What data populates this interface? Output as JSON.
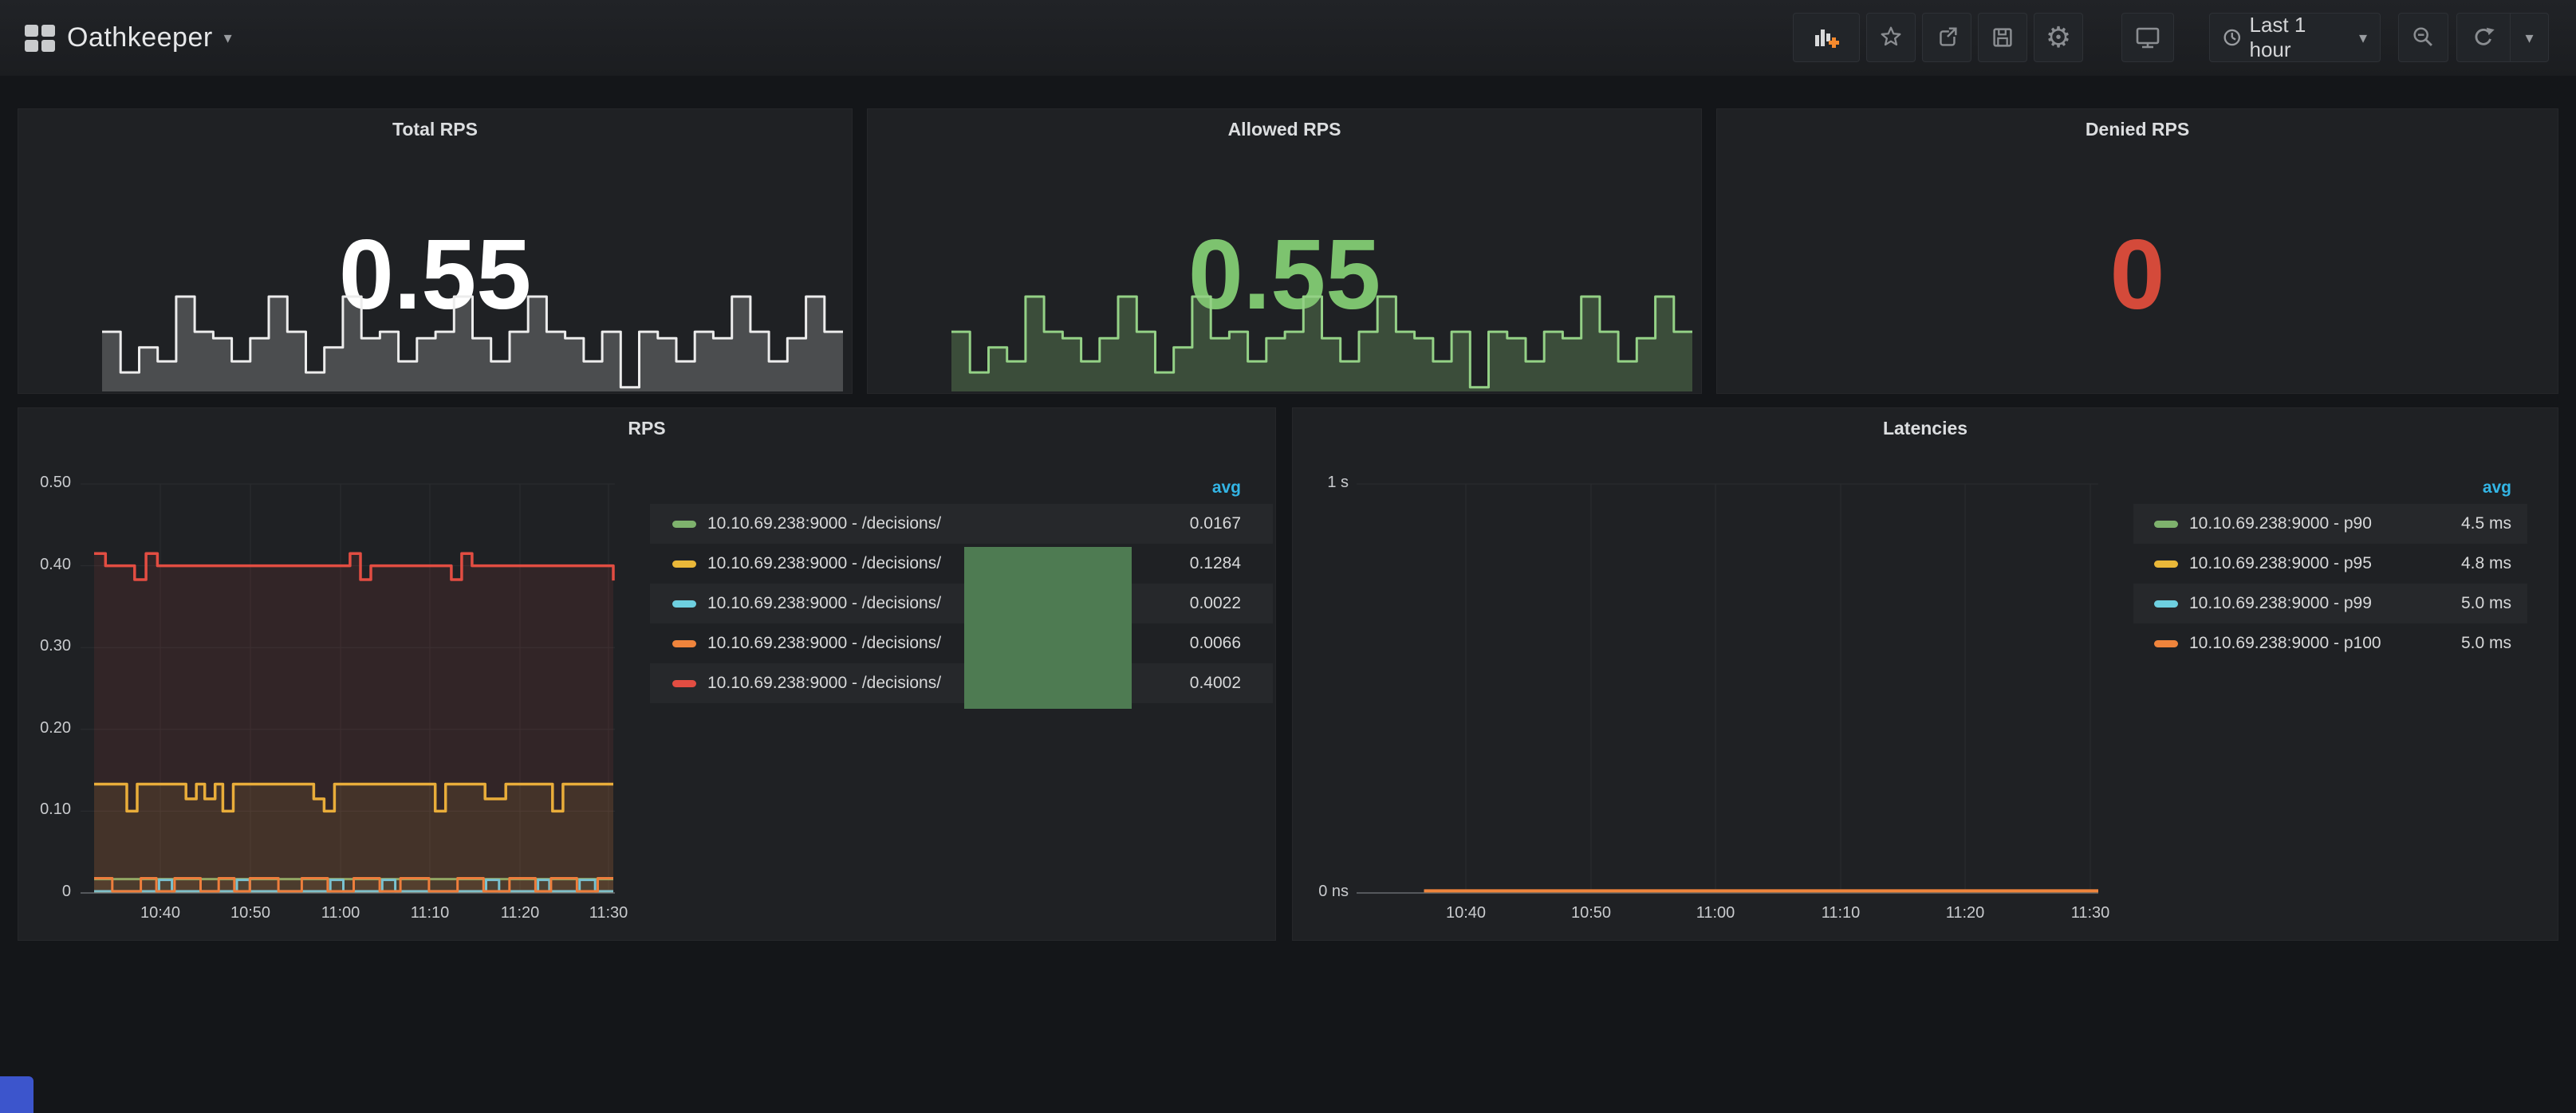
{
  "navbar": {
    "title": "Oathkeeper",
    "toolbar": {
      "time_range": "Last 1 hour",
      "buttons": [
        "add-panel",
        "star",
        "share",
        "save",
        "settings",
        "cycle-view-mode",
        "time-range",
        "zoom-out",
        "refresh",
        "refresh-interval"
      ]
    }
  },
  "colors": {
    "accent_blue": "#33b5e5",
    "palette_green": "#7eb26d",
    "palette_yellow": "#eab839",
    "palette_blue": "#6ed0e0",
    "palette_orange": "#ef843c",
    "palette_red": "#e24d42"
  },
  "panels": {
    "total_rps": {
      "title": "Total RPS",
      "value": "0.55",
      "value_color": "#ffffff"
    },
    "allowed_rps": {
      "title": "Allowed RPS",
      "value": "0.55",
      "value_color": "#7dc36f"
    },
    "denied_rps": {
      "title": "Denied RPS",
      "value": "0",
      "value_color": "#d44a3a"
    },
    "rps": {
      "title": "RPS",
      "y_ticks": [
        "0.50",
        "0.40",
        "0.30",
        "0.20",
        "0.10",
        "0"
      ],
      "x_ticks": [
        "10:40",
        "10:50",
        "11:00",
        "11:10",
        "11:20",
        "11:30"
      ],
      "legend": {
        "header": "avg",
        "header_color": "#33b5e5",
        "rows": [
          {
            "label": "10.10.69.238:9000 - /decisions/",
            "value": "0.0167",
            "color": "#7eb26d"
          },
          {
            "label": "10.10.69.238:9000 - /decisions/",
            "value": "0.1284",
            "color": "#eab839"
          },
          {
            "label": "10.10.69.238:9000 - /decisions/",
            "value": "0.0022",
            "color": "#6ed0e0"
          },
          {
            "label": "10.10.69.238:9000 - /decisions/",
            "value": "0.0066",
            "color": "#ef843c"
          },
          {
            "label": "10.10.69.238:9000 - /decisions/",
            "value": "0.4002",
            "color": "#e24d42"
          }
        ]
      }
    },
    "latencies": {
      "title": "Latencies",
      "y_ticks": [
        "1 s",
        "0 ns"
      ],
      "x_ticks": [
        "10:40",
        "10:50",
        "11:00",
        "11:10",
        "11:20",
        "11:30"
      ],
      "legend": {
        "header": "avg",
        "header_color": "#33b5e5",
        "rows": [
          {
            "label": "10.10.69.238:9000 - p90",
            "value": "4.5 ms",
            "color": "#7eb26d"
          },
          {
            "label": "10.10.69.238:9000 - p95",
            "value": "4.8 ms",
            "color": "#eab839"
          },
          {
            "label": "10.10.69.238:9000 - p99",
            "value": "5.0 ms",
            "color": "#6ed0e0"
          },
          {
            "label": "10.10.69.238:9000 - p100",
            "value": "5.0 ms",
            "color": "#ef843c"
          }
        ]
      }
    }
  },
  "chart_data": [
    {
      "id": "total_rps_sparkline",
      "type": "sparkline",
      "title": "Total RPS",
      "current": 0.55,
      "line_color": "#ececec",
      "fill_color": "rgba(255,255,255,0.20)",
      "values": [
        0.62,
        0.18,
        0.45,
        0.3,
        1.0,
        0.62,
        0.55,
        0.3,
        0.55,
        1.0,
        0.62,
        0.18,
        0.45,
        1.0,
        0.55,
        0.62,
        0.3,
        0.55,
        0.62,
        1.0,
        0.55,
        0.3,
        0.62,
        1.0,
        0.62,
        0.55,
        0.3,
        0.62,
        0.02,
        0.62,
        0.55,
        0.3,
        0.62,
        0.55,
        1.0,
        0.62,
        0.3,
        0.55,
        1.0,
        0.62
      ]
    },
    {
      "id": "allowed_rps_sparkline",
      "type": "sparkline",
      "title": "Allowed RPS",
      "current": 0.55,
      "line_color": "#94d186",
      "fill_color": "rgba(126,178,109,0.30)",
      "values": [
        0.62,
        0.18,
        0.45,
        0.3,
        1.0,
        0.62,
        0.55,
        0.3,
        0.55,
        1.0,
        0.62,
        0.18,
        0.45,
        1.0,
        0.55,
        0.62,
        0.3,
        0.55,
        0.62,
        1.0,
        0.55,
        0.3,
        0.62,
        1.0,
        0.62,
        0.55,
        0.3,
        0.62,
        0.02,
        0.62,
        0.55,
        0.3,
        0.62,
        0.55,
        1.0,
        0.62,
        0.3,
        0.55,
        1.0,
        0.62
      ]
    },
    {
      "id": "rps_timeseries",
      "type": "line",
      "title": "RPS",
      "ylim": [
        0,
        0.5
      ],
      "y_ticks": [
        "0.50",
        "0.40",
        "0.30",
        "0.20",
        "0.10",
        "0"
      ],
      "x_ticks": [
        "10:40",
        "10:50",
        "11:00",
        "11:10",
        "11:20",
        "11:30"
      ],
      "grid": true,
      "legend_position": "right-table",
      "series": [
        {
          "name": "10.10.69.238:9000 - /decisions/",
          "color": "#7eb26d",
          "avg": 0.0167,
          "width": 3,
          "fill_opacity": 0.08,
          "points": [
            [
              0,
              0.017
            ],
            [
              1,
              0.017
            ]
          ]
        },
        {
          "name": "10.10.69.238:9000 - /decisions/",
          "color": "#eab839",
          "avg": 0.1284,
          "width": 3.5,
          "fill_opacity": 0.1,
          "points": [
            [
              0,
              0.133
            ],
            [
              0.058,
              0.133
            ],
            [
              0.063,
              0.1
            ],
            [
              0.078,
              0.1
            ],
            [
              0.083,
              0.133
            ],
            [
              0.172,
              0.133
            ],
            [
              0.177,
              0.115
            ],
            [
              0.192,
              0.115
            ],
            [
              0.197,
              0.133
            ],
            [
              0.208,
              0.133
            ],
            [
              0.213,
              0.115
            ],
            [
              0.228,
              0.115
            ],
            [
              0.233,
              0.133
            ],
            [
              0.243,
              0.133
            ],
            [
              0.248,
              0.1
            ],
            [
              0.263,
              0.1
            ],
            [
              0.268,
              0.133
            ],
            [
              0.418,
              0.133
            ],
            [
              0.423,
              0.115
            ],
            [
              0.438,
              0.115
            ],
            [
              0.443,
              0.1
            ],
            [
              0.458,
              0.1
            ],
            [
              0.463,
              0.133
            ],
            [
              0.652,
              0.133
            ],
            [
              0.657,
              0.1
            ],
            [
              0.672,
              0.1
            ],
            [
              0.677,
              0.133
            ],
            [
              0.748,
              0.133
            ],
            [
              0.753,
              0.115
            ],
            [
              0.788,
              0.115
            ],
            [
              0.793,
              0.133
            ],
            [
              0.878,
              0.133
            ],
            [
              0.883,
              0.1
            ],
            [
              0.898,
              0.1
            ],
            [
              0.903,
              0.133
            ],
            [
              1,
              0.133
            ]
          ]
        },
        {
          "name": "10.10.69.238:9000 - /decisions/",
          "color": "#6ed0e0",
          "avg": 0.0022,
          "width": 3,
          "fill_opacity": 0.05,
          "points": [
            [
              0,
              0.002
            ],
            [
              0.12,
              0.002
            ],
            [
              0.125,
              0.016
            ],
            [
              0.145,
              0.016
            ],
            [
              0.15,
              0.002
            ],
            [
              0.27,
              0.002
            ],
            [
              0.275,
              0.016
            ],
            [
              0.295,
              0.016
            ],
            [
              0.3,
              0.002
            ],
            [
              0.45,
              0.002
            ],
            [
              0.455,
              0.016
            ],
            [
              0.475,
              0.016
            ],
            [
              0.48,
              0.002
            ],
            [
              0.55,
              0.002
            ],
            [
              0.555,
              0.016
            ],
            [
              0.575,
              0.016
            ],
            [
              0.58,
              0.002
            ],
            [
              0.75,
              0.002
            ],
            [
              0.755,
              0.016
            ],
            [
              0.775,
              0.016
            ],
            [
              0.78,
              0.002
            ],
            [
              0.85,
              0.002
            ],
            [
              0.855,
              0.016
            ],
            [
              0.872,
              0.016
            ],
            [
              0.877,
              0.002
            ],
            [
              0.93,
              0.002
            ],
            [
              0.935,
              0.016
            ],
            [
              0.96,
              0.016
            ],
            [
              0.965,
              0.002
            ],
            [
              1,
              0.002
            ]
          ]
        },
        {
          "name": "10.10.69.238:9000 - /decisions/",
          "color": "#ef843c",
          "avg": 0.0066,
          "width": 3,
          "fill_opacity": 0.06,
          "points": [
            [
              0,
              0.018
            ],
            [
              0.03,
              0.018
            ],
            [
              0.035,
              0.002
            ],
            [
              0.085,
              0.002
            ],
            [
              0.09,
              0.018
            ],
            [
              0.115,
              0.018
            ],
            [
              0.12,
              0.002
            ],
            [
              0.15,
              0.002
            ],
            [
              0.155,
              0.018
            ],
            [
              0.2,
              0.018
            ],
            [
              0.205,
              0.002
            ],
            [
              0.235,
              0.002
            ],
            [
              0.24,
              0.018
            ],
            [
              0.265,
              0.018
            ],
            [
              0.27,
              0.002
            ],
            [
              0.295,
              0.002
            ],
            [
              0.3,
              0.018
            ],
            [
              0.35,
              0.018
            ],
            [
              0.355,
              0.002
            ],
            [
              0.395,
              0.002
            ],
            [
              0.4,
              0.018
            ],
            [
              0.445,
              0.018
            ],
            [
              0.45,
              0.002
            ],
            [
              0.495,
              0.002
            ],
            [
              0.5,
              0.018
            ],
            [
              0.545,
              0.018
            ],
            [
              0.55,
              0.002
            ],
            [
              0.585,
              0.002
            ],
            [
              0.59,
              0.018
            ],
            [
              0.64,
              0.018
            ],
            [
              0.645,
              0.002
            ],
            [
              0.695,
              0.002
            ],
            [
              0.7,
              0.018
            ],
            [
              0.745,
              0.018
            ],
            [
              0.75,
              0.002
            ],
            [
              0.795,
              0.002
            ],
            [
              0.8,
              0.018
            ],
            [
              0.845,
              0.018
            ],
            [
              0.85,
              0.002
            ],
            [
              0.875,
              0.002
            ],
            [
              0.88,
              0.018
            ],
            [
              0.925,
              0.018
            ],
            [
              0.93,
              0.002
            ],
            [
              0.965,
              0.002
            ],
            [
              0.97,
              0.018
            ],
            [
              1,
              0.018
            ]
          ]
        },
        {
          "name": "10.10.69.238:9000 - /decisions/",
          "color": "#e24d42",
          "avg": 0.4002,
          "width": 3.5,
          "fill_opacity": 0.1,
          "points": [
            [
              0,
              0.415
            ],
            [
              0.022,
              0.4
            ],
            [
              0.072,
              0.4
            ],
            [
              0.078,
              0.383
            ],
            [
              0.095,
              0.383
            ],
            [
              0.1,
              0.415
            ],
            [
              0.115,
              0.415
            ],
            [
              0.122,
              0.4
            ],
            [
              0.488,
              0.4
            ],
            [
              0.493,
              0.415
            ],
            [
              0.508,
              0.415
            ],
            [
              0.513,
              0.383
            ],
            [
              0.528,
              0.383
            ],
            [
              0.533,
              0.4
            ],
            [
              0.683,
              0.4
            ],
            [
              0.688,
              0.383
            ],
            [
              0.703,
              0.383
            ],
            [
              0.708,
              0.415
            ],
            [
              0.723,
              0.415
            ],
            [
              0.728,
              0.4
            ],
            [
              0.988,
              0.4
            ],
            [
              1,
              0.382
            ]
          ]
        }
      ]
    },
    {
      "id": "latencies_timeseries",
      "type": "line",
      "title": "Latencies",
      "ylim_seconds": [
        0,
        1
      ],
      "y_ticks": [
        "1 s",
        "0 ns"
      ],
      "x_ticks": [
        "10:40",
        "10:50",
        "11:00",
        "11:10",
        "11:20",
        "11:30"
      ],
      "grid": true,
      "legend_position": "right-table",
      "series": [
        {
          "name": "10.10.69.238:9000 - p90",
          "color": "#7eb26d",
          "avg_ms": 4.5,
          "width": 3,
          "points": [
            [
              0.091,
              0.0044
            ],
            [
              1,
              0.0044
            ]
          ]
        },
        {
          "name": "10.10.69.238:9000 - p95",
          "color": "#eab839",
          "avg_ms": 4.8,
          "width": 3,
          "points": [
            [
              0.091,
              0.0047
            ],
            [
              1,
              0.0047
            ]
          ]
        },
        {
          "name": "10.10.69.238:9000 - p99",
          "color": "#6ed0e0",
          "avg_ms": 5.0,
          "width": 3,
          "points": [
            [
              0.091,
              0.005
            ],
            [
              1,
              0.005
            ]
          ]
        },
        {
          "name": "10.10.69.238:9000 - p100",
          "color": "#ef843c",
          "avg_ms": 5.0,
          "width": 4,
          "points": [
            [
              0.091,
              0.005
            ],
            [
              1,
              0.005
            ]
          ]
        }
      ]
    }
  ]
}
